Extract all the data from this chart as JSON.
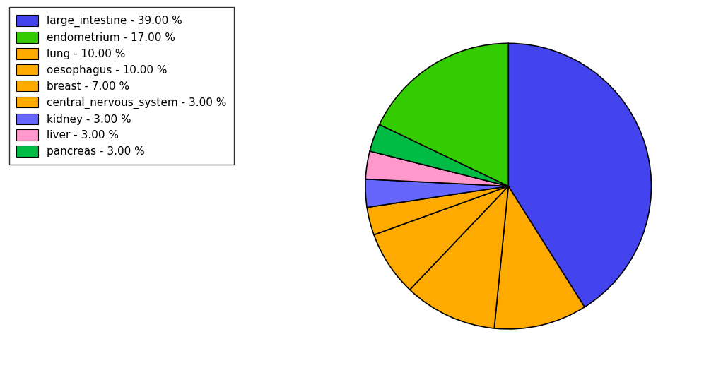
{
  "labels": [
    "large_intestine - 39.00 %",
    "endometrium - 17.00 %",
    "lung - 10.00 %",
    "oesophagus - 10.00 %",
    "breast - 7.00 %",
    "central_nervous_system - 3.00 %",
    "kidney - 3.00 %",
    "liver - 3.00 %",
    "pancreas - 3.00 %"
  ],
  "values": [
    39,
    17,
    10,
    10,
    7,
    3,
    3,
    3,
    3
  ],
  "pie_order_values": [
    39,
    10,
    10,
    7,
    3,
    3,
    3,
    3,
    17
  ],
  "pie_order_colors": [
    "#4444ee",
    "#ffaa00",
    "#ffaa00",
    "#ffaa00",
    "#ffaa00",
    "#6666ff",
    "#ff99cc",
    "#00bb44",
    "#33cc00"
  ],
  "legend_colors": [
    "#4444ee",
    "#33cc00",
    "#ffaa00",
    "#ffaa00",
    "#ffaa00",
    "#ffaa00",
    "#6666ff",
    "#ff99cc",
    "#00bb44"
  ],
  "figsize": [
    10.13,
    5.38
  ],
  "dpi": 100
}
